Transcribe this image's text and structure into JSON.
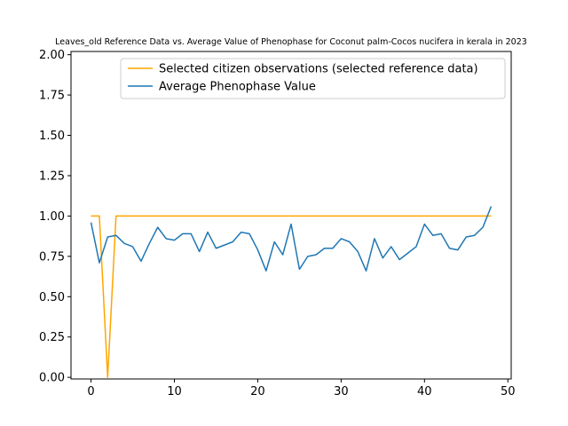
{
  "chart_data": {
    "type": "line",
    "title": "Leaves_old Reference Data vs. Average Value of Phenophase for Coconut palm-Cocos nucifera in kerala in 2023",
    "xlabel": "",
    "ylabel": "",
    "xlim": [
      -2.4,
      50.4
    ],
    "ylim": [
      -0.01,
      2.02
    ],
    "x_ticks": [
      0,
      10,
      20,
      30,
      40,
      50
    ],
    "y_ticks": [
      0.0,
      0.25,
      0.5,
      0.75,
      1.0,
      1.25,
      1.5,
      1.75,
      2.0
    ],
    "x_tick_labels": [
      "0",
      "10",
      "20",
      "30",
      "40",
      "50"
    ],
    "y_tick_labels": [
      "0.00",
      "0.25",
      "0.50",
      "0.75",
      "1.00",
      "1.25",
      "1.50",
      "1.75",
      "2.00"
    ],
    "grid": false,
    "legend_position": "top-right",
    "series": [
      {
        "name": "Selected citizen observations (selected reference data)",
        "color": "#FFA500",
        "x": [
          0,
          1,
          2,
          3,
          4,
          5,
          6,
          7,
          8,
          9,
          10,
          11,
          12,
          13,
          14,
          15,
          16,
          17,
          18,
          19,
          20,
          21,
          22,
          23,
          24,
          25,
          26,
          27,
          28,
          29,
          30,
          31,
          32,
          33,
          34,
          35,
          36,
          37,
          38,
          39,
          40,
          41,
          42,
          43,
          44,
          45,
          46,
          47,
          48
        ],
        "values": [
          1,
          1,
          0,
          1,
          1,
          1,
          1,
          1,
          1,
          1,
          1,
          1,
          1,
          1,
          1,
          1,
          1,
          1,
          1,
          1,
          1,
          1,
          1,
          1,
          1,
          1,
          1,
          1,
          1,
          1,
          1,
          1,
          1,
          1,
          1,
          1,
          1,
          1,
          1,
          1,
          1,
          1,
          1,
          1,
          1,
          1,
          1,
          1,
          1
        ]
      },
      {
        "name": "Average Phenophase Value",
        "color": "#1f77b4",
        "x": [
          0,
          1,
          2,
          3,
          4,
          5,
          6,
          7,
          8,
          9,
          10,
          11,
          12,
          13,
          14,
          15,
          16,
          17,
          18,
          19,
          20,
          21,
          22,
          23,
          24,
          25,
          26,
          27,
          28,
          29,
          30,
          31,
          32,
          33,
          34,
          35,
          36,
          37,
          38,
          39,
          40,
          41,
          42,
          43,
          44,
          45,
          46,
          47,
          48
        ],
        "values": [
          0.96,
          0.71,
          0.87,
          0.88,
          0.83,
          0.81,
          0.72,
          0.83,
          0.93,
          0.86,
          0.85,
          0.89,
          0.89,
          0.78,
          0.9,
          0.8,
          0.82,
          0.84,
          0.9,
          0.89,
          0.79,
          0.66,
          0.84,
          0.76,
          0.95,
          0.67,
          0.75,
          0.76,
          0.8,
          0.8,
          0.86,
          0.84,
          0.78,
          0.66,
          0.86,
          0.74,
          0.81,
          0.73,
          0.77,
          0.81,
          0.95,
          0.88,
          0.89,
          0.8,
          0.79,
          0.87,
          0.88,
          0.93,
          1.06
        ]
      }
    ]
  }
}
